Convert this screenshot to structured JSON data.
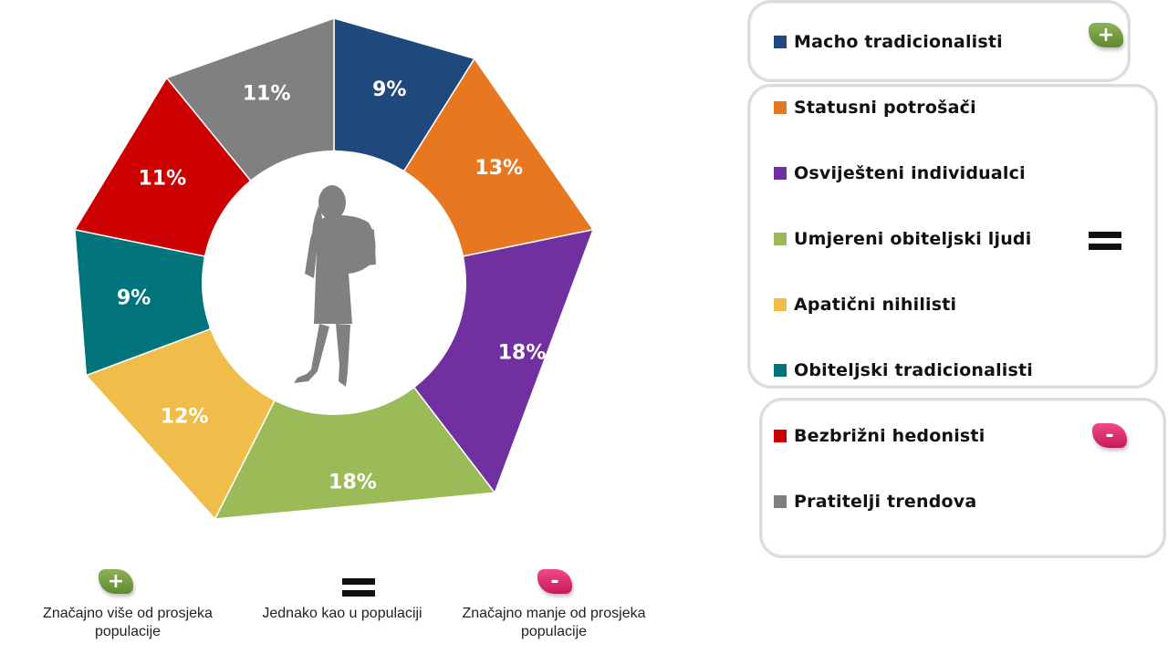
{
  "chart_data": {
    "type": "pie",
    "variant": "donut",
    "categories": [
      "Macho tradicionalisti",
      "Statusni potrošači",
      "Osviješteni individualci",
      "Umjereni obiteljski ljudi",
      "Apatični nihilisti",
      "Obiteljski tradicionalisti",
      "Bezbrižni hedonisti",
      "Pratitelji trendova"
    ],
    "values": [
      9,
      13,
      18,
      18,
      12,
      9,
      11,
      11
    ],
    "labels": [
      "9%",
      "13%",
      "18%",
      "18%",
      "12%",
      "9%",
      "11%",
      "11%"
    ],
    "colors": [
      "#1f497d",
      "#e87722",
      "#7030a0",
      "#9bbb59",
      "#f0bd4a",
      "#00747a",
      "#cc0000",
      "#808080"
    ],
    "legend_position": "right",
    "center_icon": "woman-silhouette-icon"
  },
  "legend": {
    "groups": [
      {
        "indicator": "plus",
        "indicator_label": "+",
        "items": [
          0
        ]
      },
      {
        "indicator": "equal",
        "indicator_label": "",
        "items": [
          1,
          2,
          3,
          4,
          5
        ]
      },
      {
        "indicator": "minus",
        "indicator_label": "-",
        "items": [
          6,
          7
        ]
      }
    ]
  },
  "key": {
    "plus_symbol": "+",
    "minus_symbol": "-",
    "plus_text": "Značajno više od prosjeka populacije",
    "equal_text": "Jednako kao u populaciji",
    "minus_text": "Značajno manje od prosjeka populacije"
  },
  "colors": {
    "plus_badge": "#6b9a35",
    "minus_badge": "#e0286e",
    "silhouette": "#808080",
    "box_border": "#dcdcdc"
  }
}
